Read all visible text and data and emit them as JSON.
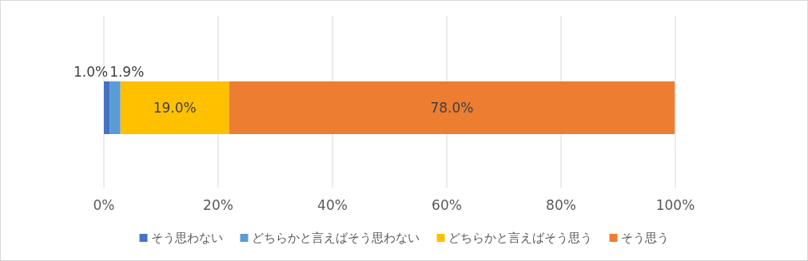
{
  "chart_data": {
    "type": "bar",
    "orientation": "horizontal",
    "stacked": true,
    "categories": [
      null
    ],
    "series": [
      {
        "name": "そう思わない",
        "color": "#4472c4",
        "values": [
          1.0
        ],
        "value_labels": [
          "1.0%"
        ]
      },
      {
        "name": "どちらかと言えばそう思わない",
        "color": "#5b9bd5",
        "values": [
          1.9
        ],
        "value_labels": [
          "1.9%"
        ]
      },
      {
        "name": "どちらかと言えばそう思う",
        "color": "#ffc000",
        "values": [
          19.0
        ],
        "value_labels": [
          "19.0%"
        ]
      },
      {
        "name": "そう思う",
        "color": "#ed7d31",
        "values": [
          78.0
        ],
        "value_labels": [
          "78.0%"
        ]
      }
    ],
    "xlim": [
      0,
      100
    ],
    "xticks": [
      {
        "value": 0,
        "label": "0%"
      },
      {
        "value": 20,
        "label": "20%"
      },
      {
        "value": 40,
        "label": "40%"
      },
      {
        "value": 60,
        "label": "60%"
      },
      {
        "value": 80,
        "label": "80%"
      },
      {
        "value": 100,
        "label": "100%"
      }
    ],
    "grid": "x",
    "legend": "bottom"
  }
}
